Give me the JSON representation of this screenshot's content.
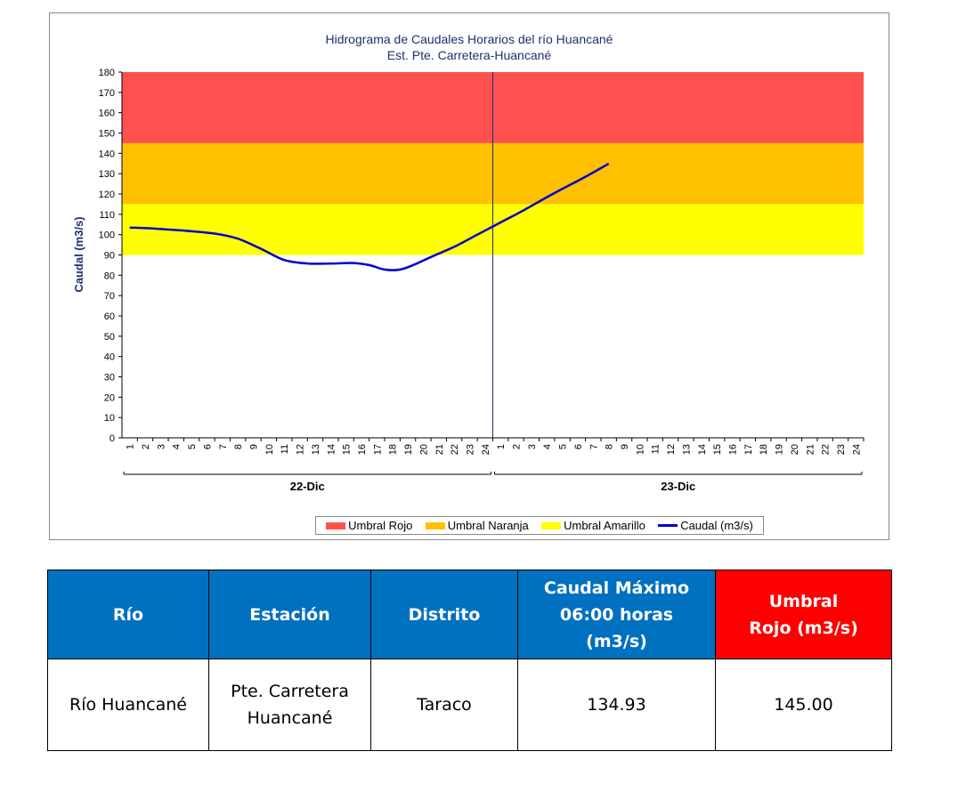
{
  "chart_data": {
    "type": "line",
    "title": "Hidrograma de Caudales Horarios del río Huancané",
    "subtitle": "Est. Pte. Carretera-Huancané",
    "ylabel": "Caudal  (m3/s)",
    "ylim": [
      0,
      180
    ],
    "yticks": [
      0,
      10,
      20,
      30,
      40,
      50,
      60,
      70,
      80,
      90,
      100,
      110,
      120,
      130,
      140,
      150,
      160,
      170,
      180
    ],
    "hour_ticks": [
      "1",
      "2",
      "3",
      "4",
      "5",
      "6",
      "7",
      "8",
      "9",
      "10",
      "11",
      "12",
      "13",
      "14",
      "15",
      "16",
      "17",
      "18",
      "19",
      "20",
      "21",
      "22",
      "23",
      "24"
    ],
    "day_labels": [
      "22-Dic",
      "23-Dic"
    ],
    "bands": [
      {
        "name": "Umbral Rojo",
        "from": 145,
        "to": 180,
        "color": "#ff5050"
      },
      {
        "name": "Umbral Naranja",
        "from": 115,
        "to": 145,
        "color": "#ffc000"
      },
      {
        "name": "Umbral Amarillo",
        "from": 90,
        "to": 115,
        "color": "#ffff00"
      }
    ],
    "series": [
      {
        "name": "Caudal (m3/s)",
        "color": "#0000cc",
        "points": [
          [
            0.5,
            103.5
          ],
          [
            2,
            103
          ],
          [
            4,
            102
          ],
          [
            6,
            100.5
          ],
          [
            7.5,
            98
          ],
          [
            9,
            93
          ],
          [
            10.5,
            87.5
          ],
          [
            12,
            85.8
          ],
          [
            13.5,
            85.8
          ],
          [
            15,
            86
          ],
          [
            16,
            85
          ],
          [
            17,
            82.8
          ],
          [
            18,
            82.8
          ],
          [
            19,
            85.5
          ],
          [
            20,
            89
          ],
          [
            21.5,
            94
          ],
          [
            23,
            100
          ],
          [
            24.5,
            106
          ],
          [
            26,
            112
          ],
          [
            28,
            120.5
          ],
          [
            30,
            128.5
          ],
          [
            31.5,
            134.93
          ]
        ]
      }
    ]
  },
  "legend": {
    "items": [
      "Umbral Rojo",
      "Umbral Naranja",
      "Umbral Amarillo",
      "Caudal (m3/s)"
    ]
  },
  "table": {
    "headers": [
      {
        "text": "Río",
        "color": "#0070c0"
      },
      {
        "text": "Estación",
        "color": "#0070c0"
      },
      {
        "text": "Distrito",
        "color": "#0070c0"
      },
      {
        "text": "Caudal Máximo 06:00 horas (m3/s)",
        "color": "#0070c0"
      },
      {
        "text": "Umbral Rojo (m3/s)",
        "color": "#ff0000"
      }
    ],
    "row": [
      "Río Huancané",
      "Pte. Carretera Huancané",
      "Taraco",
      "134.93",
      "145.00"
    ]
  }
}
